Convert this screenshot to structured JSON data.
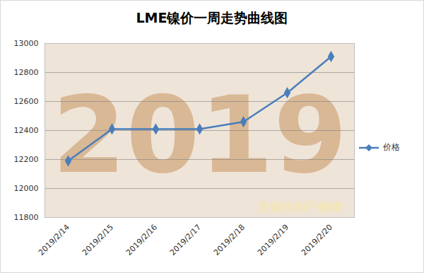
{
  "chart_data": {
    "type": "line",
    "title": "LME镍价一周走势曲线图",
    "categories": [
      "2019/2/14",
      "2019/2/15",
      "2019/2/16",
      "2019/2/17",
      "2019/2/18",
      "2019/2/19",
      "2019/2/20"
    ],
    "series": [
      {
        "name": "价格",
        "color": "#4a7ebb",
        "marker": "diamond",
        "values": [
          12190,
          12410,
          12410,
          12410,
          12460,
          12660,
          12910
        ]
      }
    ],
    "ylim": [
      11800,
      13000
    ],
    "yticks": [
      11800,
      12000,
      12200,
      12400,
      12600,
      12800,
      13000
    ],
    "grid": true,
    "legend": "right",
    "annotations": [
      "2019",
      "无锡佳创不锈钢"
    ]
  }
}
